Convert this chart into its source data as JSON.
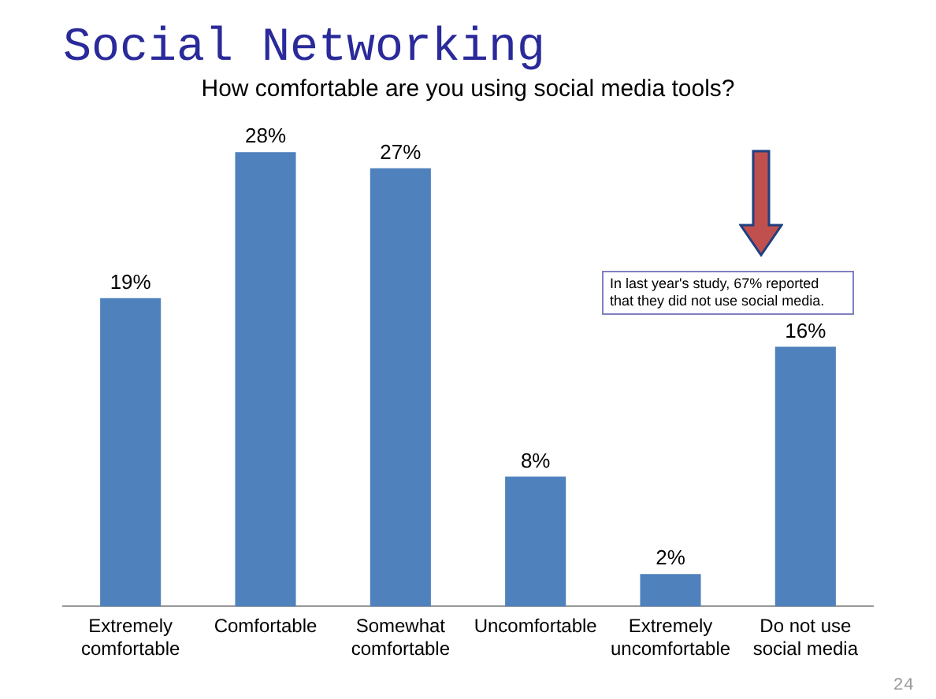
{
  "chart_data": {
    "type": "bar",
    "title": "Social Networking",
    "subtitle": "How comfortable are you using social media tools?",
    "categories": [
      "Extremely\ncomfortable",
      "Comfortable",
      "Somewhat\ncomfortable",
      "Uncomfortable",
      "Extremely\nuncomfortable",
      "Do not use\nsocial media"
    ],
    "values": [
      19,
      28,
      27,
      8,
      2,
      16
    ],
    "color": "#4f81bd",
    "value_labels": [
      "19%",
      "28%",
      "27%",
      "8%",
      "2%",
      "16%"
    ],
    "annotations": [
      "In last year's study, 67% reported that they did not use social media.",
      "24"
    ],
    "grid": false,
    "legend": false
  }
}
